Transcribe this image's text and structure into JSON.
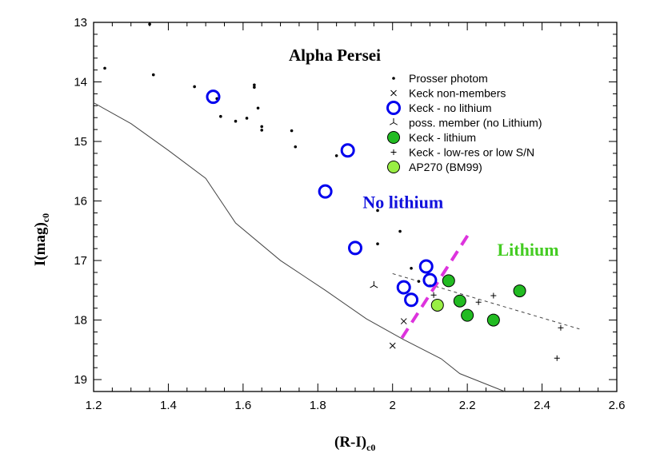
{
  "chart_data": {
    "type": "scatter",
    "title": "Alpha Persei",
    "xlabel": "(R-I)",
    "xlabel_sub": "c0",
    "ylabel": "I(mag)",
    "ylabel_sub": "c0",
    "xlim": [
      1.2,
      2.6
    ],
    "ylim": [
      19.2,
      13
    ],
    "x_ticks": [
      "1.2",
      "1.4",
      "1.6",
      "1.8",
      "2",
      "2.2",
      "2.4",
      "2.6"
    ],
    "y_ticks": [
      "13",
      "14",
      "15",
      "16",
      "17",
      "18",
      "19"
    ],
    "grid": false,
    "legend_position": "upper-right",
    "series": [
      {
        "name": "Prosser photom",
        "marker": "dot",
        "color": "#000000",
        "points": [
          [
            1.35,
            13.03
          ],
          [
            1.23,
            13.77
          ],
          [
            1.36,
            13.88
          ],
          [
            1.47,
            14.08
          ],
          [
            1.53,
            14.28
          ],
          [
            1.54,
            14.58
          ],
          [
            1.58,
            14.66
          ],
          [
            1.61,
            14.61
          ],
          [
            1.63,
            14.05
          ],
          [
            1.63,
            14.09
          ],
          [
            1.64,
            14.44
          ],
          [
            1.65,
            14.75
          ],
          [
            1.65,
            14.81
          ],
          [
            1.73,
            14.82
          ],
          [
            1.74,
            15.09
          ],
          [
            1.85,
            15.24
          ],
          [
            1.96,
            16.16
          ],
          [
            1.96,
            16.72
          ],
          [
            2.02,
            16.51
          ],
          [
            2.05,
            17.13
          ],
          [
            2.07,
            17.35
          ]
        ]
      },
      {
        "name": "Keck non-members",
        "marker": "x",
        "color": "#000000",
        "points": [
          [
            2.0,
            18.43
          ],
          [
            2.03,
            18.02
          ]
        ]
      },
      {
        "name": "Keck - no lithium",
        "marker": "open-circle",
        "color": "#0000ee",
        "points": [
          [
            1.52,
            14.25
          ],
          [
            1.88,
            15.15
          ],
          [
            1.82,
            15.84
          ],
          [
            1.9,
            16.79
          ],
          [
            2.09,
            17.1
          ],
          [
            2.1,
            17.33
          ],
          [
            2.03,
            17.45
          ],
          [
            2.05,
            17.66
          ]
        ]
      },
      {
        "name": "poss. member (no Lithium)",
        "marker": "tri",
        "color": "#000000",
        "points": [
          [
            1.95,
            17.42
          ]
        ]
      },
      {
        "name": "Keck - lithium",
        "marker": "filled-circle",
        "color": "#22bb22",
        "points": [
          [
            2.15,
            17.34
          ],
          [
            2.18,
            17.68
          ],
          [
            2.2,
            17.92
          ],
          [
            2.27,
            18.0
          ],
          [
            2.34,
            17.51
          ]
        ]
      },
      {
        "name": "Keck - low-res or low S/N",
        "marker": "plus",
        "color": "#000000",
        "points": [
          [
            2.11,
            17.58
          ],
          [
            2.23,
            17.7
          ],
          [
            2.27,
            17.59
          ],
          [
            2.45,
            18.13
          ],
          [
            2.44,
            18.64
          ]
        ]
      },
      {
        "name": "AP270 (BM99)",
        "marker": "filled-circle",
        "color": "#99ee44",
        "points": [
          [
            2.12,
            17.75
          ]
        ]
      }
    ],
    "lines": [
      {
        "style": "solid",
        "color": "#444444",
        "points": [
          [
            1.2,
            14.35
          ],
          [
            1.3,
            14.7
          ],
          [
            1.4,
            15.15
          ],
          [
            1.5,
            15.62
          ],
          [
            1.58,
            16.37
          ],
          [
            1.7,
            17.0
          ],
          [
            1.82,
            17.5
          ],
          [
            1.93,
            17.98
          ],
          [
            2.03,
            18.33
          ],
          [
            2.13,
            18.65
          ],
          [
            2.18,
            18.9
          ],
          [
            2.3,
            19.2
          ]
        ]
      },
      {
        "style": "dashed",
        "color": "#444444",
        "points": [
          [
            2.0,
            17.22
          ],
          [
            2.5,
            18.15
          ]
        ]
      },
      {
        "style": "thick-dashed",
        "color": "#dd33dd",
        "points": [
          [
            2.025,
            18.3
          ],
          [
            2.205,
            16.54
          ]
        ]
      }
    ],
    "annotations": [
      {
        "text": "No lithium",
        "x": 1.92,
        "y": 16.12,
        "color": "#1111dd"
      },
      {
        "text": "Lithium",
        "x": 2.28,
        "y": 16.92,
        "color": "#44cc22"
      }
    ]
  }
}
